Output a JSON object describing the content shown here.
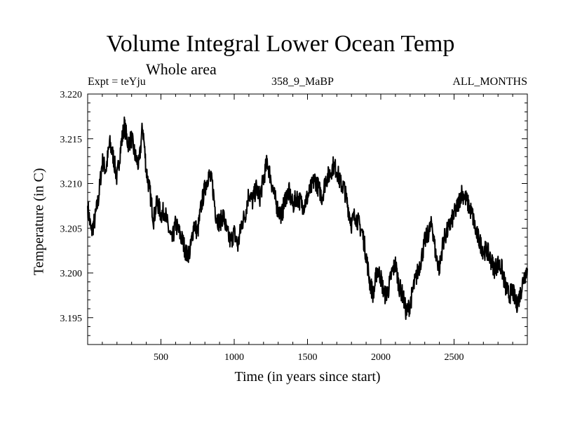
{
  "chart_data": {
    "type": "line",
    "title": "Volume Integral Lower Ocean Temp",
    "subtitle": "Whole area",
    "expt_label": "Expt = teYju",
    "period_label": "358_9_MaBP",
    "months_label": "ALL_MONTHS",
    "xlabel": "Time (in years since start)",
    "ylabel": "Temperature (in C)",
    "xlim": [
      0,
      3000
    ],
    "ylim": [
      3.192,
      3.22
    ],
    "x_ticks": [
      500,
      1000,
      1500,
      2000,
      2500
    ],
    "x_tick_labels": [
      "500",
      "1000",
      "1500",
      "2000",
      "2500"
    ],
    "y_ticks": [
      3.195,
      3.2,
      3.205,
      3.21,
      3.215,
      3.22
    ],
    "y_tick_labels": [
      "3.195",
      "3.200",
      "3.205",
      "3.210",
      "3.215",
      "3.220"
    ],
    "line_color": "#000000",
    "series": [
      {
        "name": "Volume Integral Lower Ocean Temp",
        "x": [
          0,
          25,
          50,
          75,
          100,
          125,
          150,
          175,
          200,
          225,
          250,
          275,
          300,
          325,
          350,
          375,
          400,
          425,
          450,
          475,
          500,
          525,
          550,
          575,
          600,
          625,
          650,
          675,
          700,
          725,
          750,
          775,
          800,
          825,
          850,
          875,
          900,
          925,
          950,
          975,
          1000,
          1025,
          1050,
          1075,
          1100,
          1125,
          1150,
          1175,
          1200,
          1225,
          1250,
          1275,
          1300,
          1325,
          1350,
          1375,
          1400,
          1425,
          1450,
          1475,
          1500,
          1525,
          1550,
          1575,
          1600,
          1625,
          1650,
          1675,
          1700,
          1725,
          1750,
          1775,
          1800,
          1825,
          1850,
          1875,
          1900,
          1925,
          1950,
          1975,
          2000,
          2025,
          2050,
          2075,
          2100,
          2125,
          2150,
          2175,
          2200,
          2225,
          2250,
          2275,
          2300,
          2325,
          2350,
          2375,
          2400,
          2425,
          2450,
          2475,
          2500,
          2525,
          2550,
          2575,
          2600,
          2625,
          2650,
          2675,
          2700,
          2725,
          2750,
          2775,
          2800,
          2825,
          2850,
          2875,
          2900,
          2925,
          2950,
          2975,
          3000
        ],
        "values": [
          3.2075,
          3.2045,
          3.206,
          3.2085,
          3.2125,
          3.2115,
          3.2145,
          3.213,
          3.2105,
          3.214,
          3.2165,
          3.2145,
          3.215,
          3.213,
          3.212,
          3.2165,
          3.2115,
          3.209,
          3.206,
          3.208,
          3.2065,
          3.207,
          3.205,
          3.2035,
          3.2055,
          3.2045,
          3.2035,
          3.202,
          3.2025,
          3.2055,
          3.2045,
          3.2075,
          3.2095,
          3.211,
          3.21,
          3.2065,
          3.2055,
          3.2065,
          3.2045,
          3.2035,
          3.2045,
          3.203,
          3.2055,
          3.2065,
          3.209,
          3.208,
          3.2095,
          3.2085,
          3.2105,
          3.2125,
          3.2105,
          3.2085,
          3.207,
          3.2065,
          3.2085,
          3.209,
          3.2075,
          3.2085,
          3.208,
          3.2075,
          3.2085,
          3.2095,
          3.2105,
          3.2095,
          3.2085,
          3.2105,
          3.211,
          3.212,
          3.2115,
          3.21,
          3.2095,
          3.2075,
          3.2055,
          3.2065,
          3.2055,
          3.2045,
          3.202,
          3.199,
          3.1975,
          3.2005,
          3.1995,
          3.1975,
          3.198,
          3.2,
          3.201,
          3.1985,
          3.1975,
          3.1955,
          3.1965,
          3.1985,
          3.2,
          3.2015,
          3.2035,
          3.2045,
          3.2055,
          3.202,
          3.2005,
          3.2035,
          3.2045,
          3.2055,
          3.2065,
          3.2075,
          3.209,
          3.2085,
          3.2075,
          3.2065,
          3.2045,
          3.2035,
          3.2025,
          3.2025,
          3.2015,
          3.2005,
          3.201,
          3.2005,
          3.1985,
          3.1975,
          3.198,
          3.1965,
          3.1975,
          3.1995,
          3.2005
        ]
      }
    ]
  }
}
